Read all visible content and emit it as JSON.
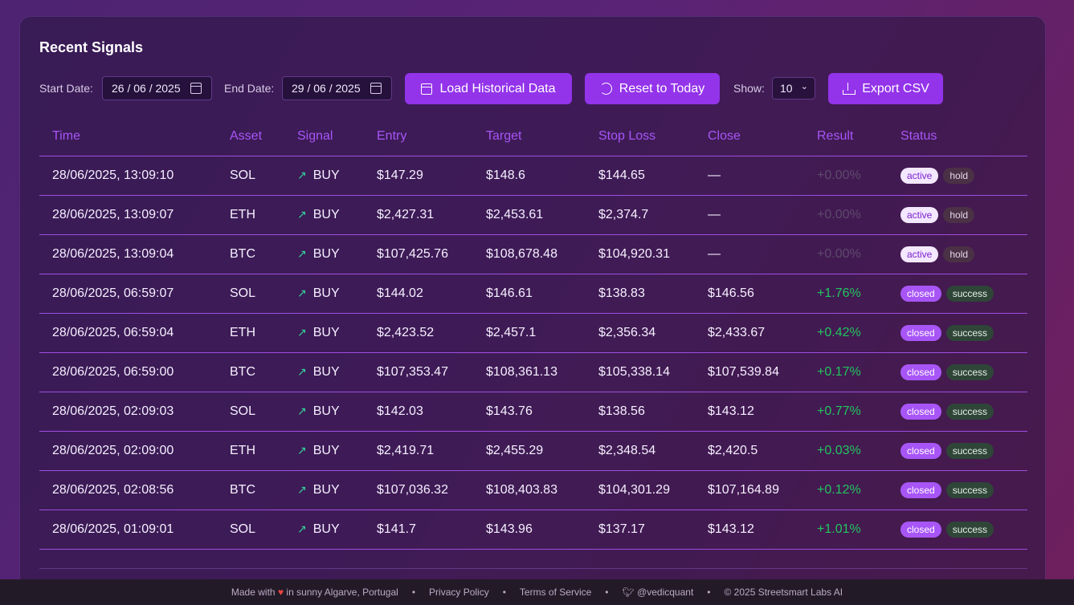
{
  "panel": {
    "title": "Recent Signals"
  },
  "toolbar": {
    "start_label": "Start Date:",
    "start_value": "26 / 06 / 2025",
    "end_label": "End Date:",
    "end_value": "29 / 06 / 2025",
    "load_label": "Load Historical Data",
    "reset_label": "Reset to Today",
    "show_label": "Show:",
    "show_value": "10",
    "export_label": "Export CSV"
  },
  "table": {
    "headers": [
      "Time",
      "Asset",
      "Signal",
      "Entry",
      "Target",
      "Stop Loss",
      "Close",
      "Result",
      "Status"
    ],
    "rows": [
      {
        "time": "28/06/2025, 13:09:10",
        "asset": "SOL",
        "signal": "BUY",
        "entry": "$147.29",
        "target": "$148.6",
        "stop": "$144.65",
        "close": "—",
        "result": "+0.00%",
        "status": "active",
        "outcome": "hold"
      },
      {
        "time": "28/06/2025, 13:09:07",
        "asset": "ETH",
        "signal": "BUY",
        "entry": "$2,427.31",
        "target": "$2,453.61",
        "stop": "$2,374.7",
        "close": "—",
        "result": "+0.00%",
        "status": "active",
        "outcome": "hold"
      },
      {
        "time": "28/06/2025, 13:09:04",
        "asset": "BTC",
        "signal": "BUY",
        "entry": "$107,425.76",
        "target": "$108,678.48",
        "stop": "$104,920.31",
        "close": "—",
        "result": "+0.00%",
        "status": "active",
        "outcome": "hold"
      },
      {
        "time": "28/06/2025, 06:59:07",
        "asset": "SOL",
        "signal": "BUY",
        "entry": "$144.02",
        "target": "$146.61",
        "stop": "$138.83",
        "close": "$146.56",
        "result": "+1.76%",
        "status": "closed",
        "outcome": "success"
      },
      {
        "time": "28/06/2025, 06:59:04",
        "asset": "ETH",
        "signal": "BUY",
        "entry": "$2,423.52",
        "target": "$2,457.1",
        "stop": "$2,356.34",
        "close": "$2,433.67",
        "result": "+0.42%",
        "status": "closed",
        "outcome": "success"
      },
      {
        "time": "28/06/2025, 06:59:00",
        "asset": "BTC",
        "signal": "BUY",
        "entry": "$107,353.47",
        "target": "$108,361.13",
        "stop": "$105,338.14",
        "close": "$107,539.84",
        "result": "+0.17%",
        "status": "closed",
        "outcome": "success"
      },
      {
        "time": "28/06/2025, 02:09:03",
        "asset": "SOL",
        "signal": "BUY",
        "entry": "$142.03",
        "target": "$143.76",
        "stop": "$138.56",
        "close": "$143.12",
        "result": "+0.77%",
        "status": "closed",
        "outcome": "success"
      },
      {
        "time": "28/06/2025, 02:09:00",
        "asset": "ETH",
        "signal": "BUY",
        "entry": "$2,419.71",
        "target": "$2,455.29",
        "stop": "$2,348.54",
        "close": "$2,420.5",
        "result": "+0.03%",
        "status": "closed",
        "outcome": "success"
      },
      {
        "time": "28/06/2025, 02:08:56",
        "asset": "BTC",
        "signal": "BUY",
        "entry": "$107,036.32",
        "target": "$108,403.83",
        "stop": "$104,301.29",
        "close": "$107,164.89",
        "result": "+0.12%",
        "status": "closed",
        "outcome": "success"
      },
      {
        "time": "28/06/2025, 01:09:01",
        "asset": "SOL",
        "signal": "BUY",
        "entry": "$141.7",
        "target": "$143.96",
        "stop": "$137.17",
        "close": "$143.12",
        "result": "+1.01%",
        "status": "closed",
        "outcome": "success"
      }
    ]
  },
  "footer": {
    "made_with": "Made with",
    "location": "in sunny Algarve, Portugal",
    "privacy": "Privacy Policy",
    "terms": "Terms of Service",
    "handle": "@vedicquant",
    "copyright": "© 2025 Streetsmart Labs AI"
  },
  "colors": {
    "accent": "#9333ea",
    "header_text": "#a855f7",
    "positive": "#22c55e",
    "trend_icon": "#34d399"
  },
  "icons": [
    "calendar-icon",
    "refresh-icon",
    "download-icon",
    "trending-up-icon",
    "heart-icon",
    "twitter-icon",
    "chevron-down-icon"
  ]
}
